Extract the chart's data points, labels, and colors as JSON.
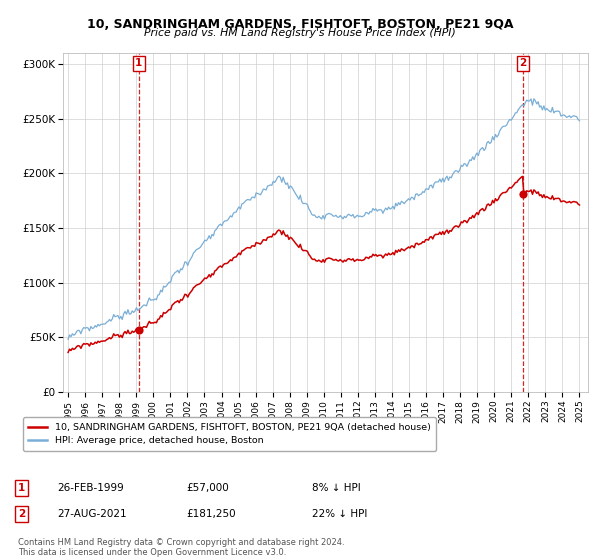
{
  "title": "10, SANDRINGHAM GARDENS, FISHTOFT, BOSTON, PE21 9QA",
  "subtitle": "Price paid vs. HM Land Registry's House Price Index (HPI)",
  "sale1_label": "26-FEB-1999",
  "sale1_price": 57000,
  "sale1_hpi_pct": "8% ↓ HPI",
  "sale1_year": 1999.15,
  "sale2_label": "27-AUG-2021",
  "sale2_price": 181250,
  "sale2_hpi_pct": "22% ↓ HPI",
  "sale2_year": 2021.67,
  "legend_property": "10, SANDRINGHAM GARDENS, FISHTOFT, BOSTON, PE21 9QA (detached house)",
  "legend_hpi": "HPI: Average price, detached house, Boston",
  "footnote": "Contains HM Land Registry data © Crown copyright and database right 2024.\nThis data is licensed under the Open Government Licence v3.0.",
  "property_color": "#cc0000",
  "hpi_color": "#7aaed6",
  "vline_color": "#cc0000",
  "background_color": "#ffffff",
  "ylim_min": 0,
  "ylim_max": 310000,
  "xlim_start": 1994.7,
  "xlim_end": 2025.5
}
